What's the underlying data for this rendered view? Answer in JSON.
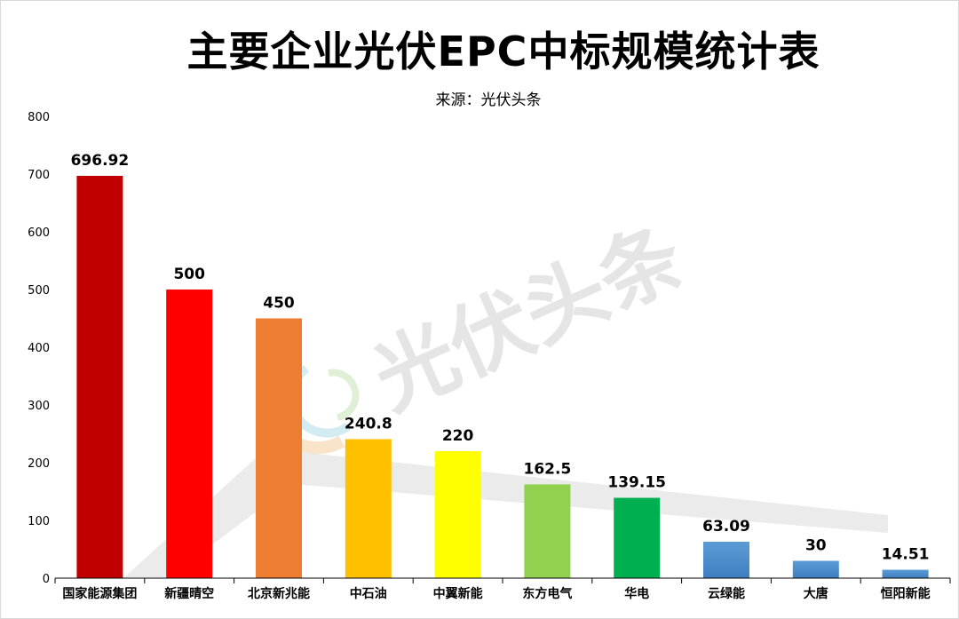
{
  "watermark": {
    "text": "光伏头条",
    "logo_icon": "photovoltaic-headlines-logo"
  },
  "colors": {
    "axis": "#000000",
    "watermark": "#cfcfcf"
  },
  "chart_data": {
    "type": "bar",
    "title": "主要企业光伏EPC中标规模统计表",
    "subtitle": "来源：光伏头条",
    "xlabel": "",
    "ylabel": "",
    "ylim": [
      0,
      800
    ],
    "yticks": [
      0,
      100,
      200,
      300,
      400,
      500,
      600,
      700,
      800
    ],
    "grid": false,
    "legend": "none",
    "categories": [
      "国家能源集团",
      "新疆晴空",
      "北京新兆能",
      "中石油",
      "中翼新能",
      "东方电气",
      "华电",
      "云绿能",
      "大唐",
      "恒阳新能"
    ],
    "values": [
      696.92,
      500,
      450,
      240.8,
      220,
      162.5,
      139.15,
      63.09,
      30,
      14.51
    ],
    "value_labels": [
      "696.92",
      "500",
      "450",
      "240.8",
      "220",
      "162.5",
      "139.15",
      "63.09",
      "30",
      "14.51"
    ],
    "bar_colors": [
      "#c00000",
      "#ff0000",
      "#ed7d31",
      "#ffc000",
      "#ffff00",
      "#92d050",
      "#00b050",
      "#5b9bd5",
      "#5b9bd5",
      "#5b9bd5"
    ]
  }
}
